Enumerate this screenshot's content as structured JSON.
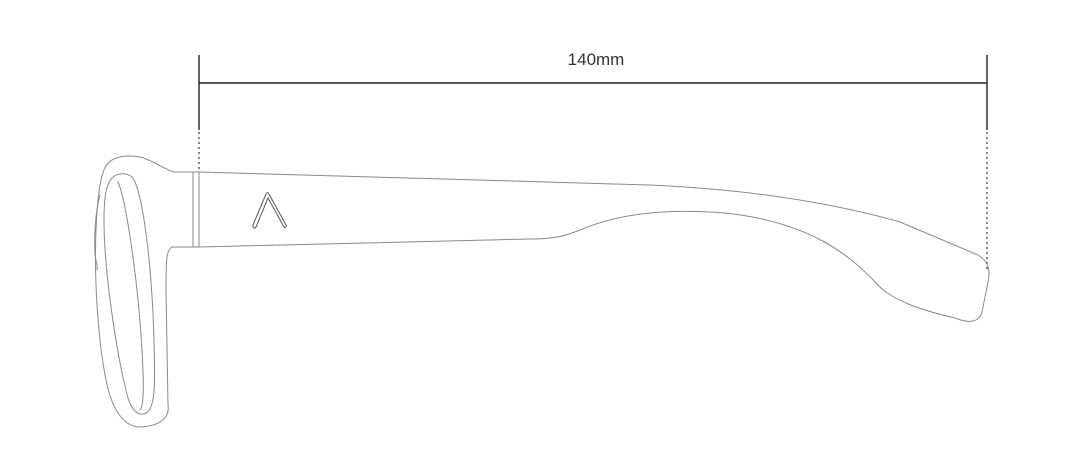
{
  "dimension": {
    "length_label": "140mm"
  },
  "colors": {
    "line": "#8a8a8a",
    "dimension_line": "#222222",
    "text": "#333333",
    "background": "#ffffff"
  }
}
